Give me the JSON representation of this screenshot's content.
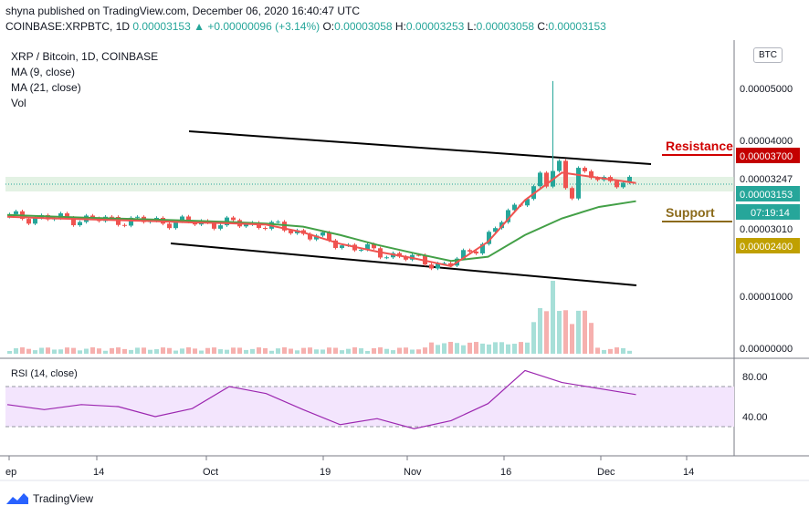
{
  "header": {
    "published": "shyna published on TradingView.com, December 06, 2020 16:40:47 UTC",
    "symbol": "COINBASE:XRPBTC, 1D",
    "price": "0.00003153",
    "change": "+0.00000096 (+3.14%)",
    "o_label": "O:",
    "o_value": "0.00003058",
    "h_label": "H:",
    "h_value": "0.00003253",
    "l_label": "L:",
    "l_value": "0.00003058",
    "c_label": "C:",
    "c_value": "0.00003153",
    "up_arrow": "triangle-up-icon"
  },
  "legend": {
    "title": "XRP / Bitcoin, 1D, COINBASE",
    "ma9": "MA (9, close)",
    "ma21": "MA (21, close)",
    "vol": "Vol"
  },
  "rsi_legend": "RSI (14, close)",
  "currency_badge": "BTC",
  "brand": "TradingView",
  "colors": {
    "up": "#26a69a",
    "down": "#ef5350",
    "ma9": "#ef5350",
    "ma21": "#43a047",
    "rsi": "#9c27b0",
    "rsi_band": "#f3e5fd",
    "resistance": "#d00000",
    "support": "#8b6a1a"
  },
  "chart_data": {
    "type": "line",
    "y_ticks": [
      "0.00005000",
      "0.00004000",
      "0.00001000",
      "0.00000000"
    ],
    "x_ticks": [
      "ep",
      "14",
      "Oct",
      "19",
      "Nov",
      "16",
      "Dec",
      "14"
    ],
    "rsi_ticks": [
      "80.00",
      "40.00"
    ],
    "price_labels": [
      {
        "text": "Resistance",
        "kind": "annotation"
      },
      {
        "text": "Support",
        "kind": "annotation"
      },
      {
        "text": "0.00003700",
        "kind": "resistance"
      },
      {
        "text": "0.00003247",
        "kind": "plain"
      },
      {
        "text": "0.00003153",
        "kind": "current"
      },
      {
        "text": "07:19:14",
        "kind": "timer"
      },
      {
        "text": "0.00003010",
        "kind": "plain"
      },
      {
        "text": "0.00002400",
        "kind": "support"
      }
    ],
    "series": [
      {
        "name": "MA (9, close)",
        "values": [
          2.53e-05,
          2.505e-05,
          2.485e-05,
          2.465e-05,
          2.445e-05,
          2.42e-05,
          2.405e-05,
          2.38e-05,
          2.23e-05,
          2.01e-05,
          1.86e-05,
          1.73e-05,
          1.58e-05,
          2.05e-05,
          2.85e-05,
          3.38e-05,
          3.28e-05,
          3.18e-05
        ]
      },
      {
        "name": "MA (21, close)",
        "values": [
          2.565e-05,
          2.54e-05,
          2.515e-05,
          2.495e-05,
          2.475e-05,
          2.455e-05,
          2.43e-05,
          2.4e-05,
          2.34e-05,
          2.18e-05,
          1.99e-05,
          1.83e-05,
          1.68e-05,
          1.76e-05,
          2.18e-05,
          2.5e-05,
          2.72e-05,
          2.83e-05
        ]
      },
      {
        "name": "RSI (14, close)",
        "values": [
          52,
          47,
          52,
          50,
          40,
          48,
          70,
          63,
          47,
          32,
          38,
          28,
          36,
          53,
          86,
          74,
          68,
          62
        ]
      }
    ]
  }
}
